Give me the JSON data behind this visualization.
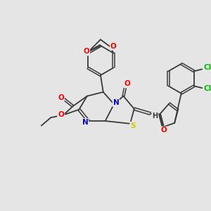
{
  "background_color": "#e5e5e5",
  "bond_color": "#3a3a3a",
  "atom_colors": {
    "O": "#ff0000",
    "N": "#0000cd",
    "S": "#cccc00",
    "Cl": "#00bb00",
    "C": "#3a3a3a",
    "H": "#3a3a3a"
  },
  "figsize": [
    3.0,
    3.0
  ],
  "dpi": 100
}
